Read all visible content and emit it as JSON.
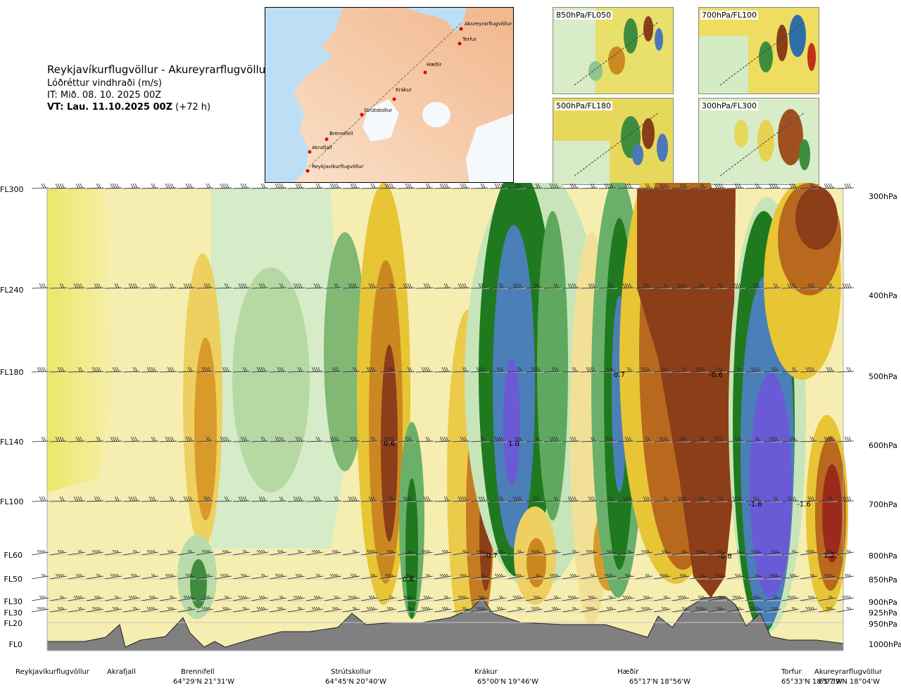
{
  "header": {
    "title": "Reykjavíkurflugvöllur - Akureyrarflugvöllur",
    "subtitle": "Lóðréttur vindhraði (m/s)",
    "it": "IT: Mið. 08. 10. 2025 00Z",
    "vt_bold": "VT: Lau. 11.10.2025 00Z",
    "vt_rest": " (+72 h)"
  },
  "map": {
    "route_points": [
      "Akureyrarflugvöllur",
      "Torfur",
      "Hæðir",
      "Krákur",
      "Strútskollur",
      "Brennifell",
      "Akrafjall",
      "Reykjavíkurflugvöllur"
    ]
  },
  "thumbnails": [
    {
      "label": "850hPa/FL050"
    },
    {
      "label": "700hPa/FL100"
    },
    {
      "label": "500hPa/FL180"
    },
    {
      "label": "300hPa/FL300"
    }
  ],
  "chart_data": {
    "type": "heatmap",
    "title": "Lóðréttur vindhraði (m/s)",
    "route": "Reykjavíkurflugvöllur - Akureyrarflugvöllur",
    "flight_levels": [
      {
        "fl": "FL300",
        "hpa": "300hPa"
      },
      {
        "fl": "FL240",
        "hpa": "400hPa"
      },
      {
        "fl": "FL180",
        "hpa": "500hPa"
      },
      {
        "fl": "FL140",
        "hpa": "600hPa"
      },
      {
        "fl": "FL100",
        "hpa": "700hPa"
      },
      {
        "fl": "FL60",
        "hpa": "800hPa"
      },
      {
        "fl": "FL50",
        "hpa": "850hPa"
      },
      {
        "fl": "FL30",
        "hpa": "900hPa"
      },
      {
        "fl": "FL30",
        "hpa": "925hPa"
      },
      {
        "fl": "FL20",
        "hpa": "950hPa"
      },
      {
        "fl": "FL0",
        "hpa": "1000hPa"
      }
    ],
    "locations": [
      {
        "name": "Reykjavíkurflugvöllur",
        "coord": ""
      },
      {
        "name": "Akrafjall",
        "coord": ""
      },
      {
        "name": "Brennifell",
        "coord": "64°29'N 21°31'W"
      },
      {
        "name": "Strútskollur",
        "coord": "64°45'N 20°40'W"
      },
      {
        "name": "Krákur",
        "coord": "65°00'N 19°46'W"
      },
      {
        "name": "Hæðir",
        "coord": "65°17'N 18°56'W"
      },
      {
        "name": "Torfur",
        "coord": "65°33'N 18°07'W"
      },
      {
        "name": "Akureyrarflugvöllur",
        "coord": "65°39'N 18°04'W"
      }
    ],
    "value_labels": [
      "0.6",
      "0.6",
      "1.0",
      "-0.7",
      "0.7",
      "-0.6",
      "-0.8",
      "-1.6",
      "-1.6",
      "1.2"
    ]
  }
}
